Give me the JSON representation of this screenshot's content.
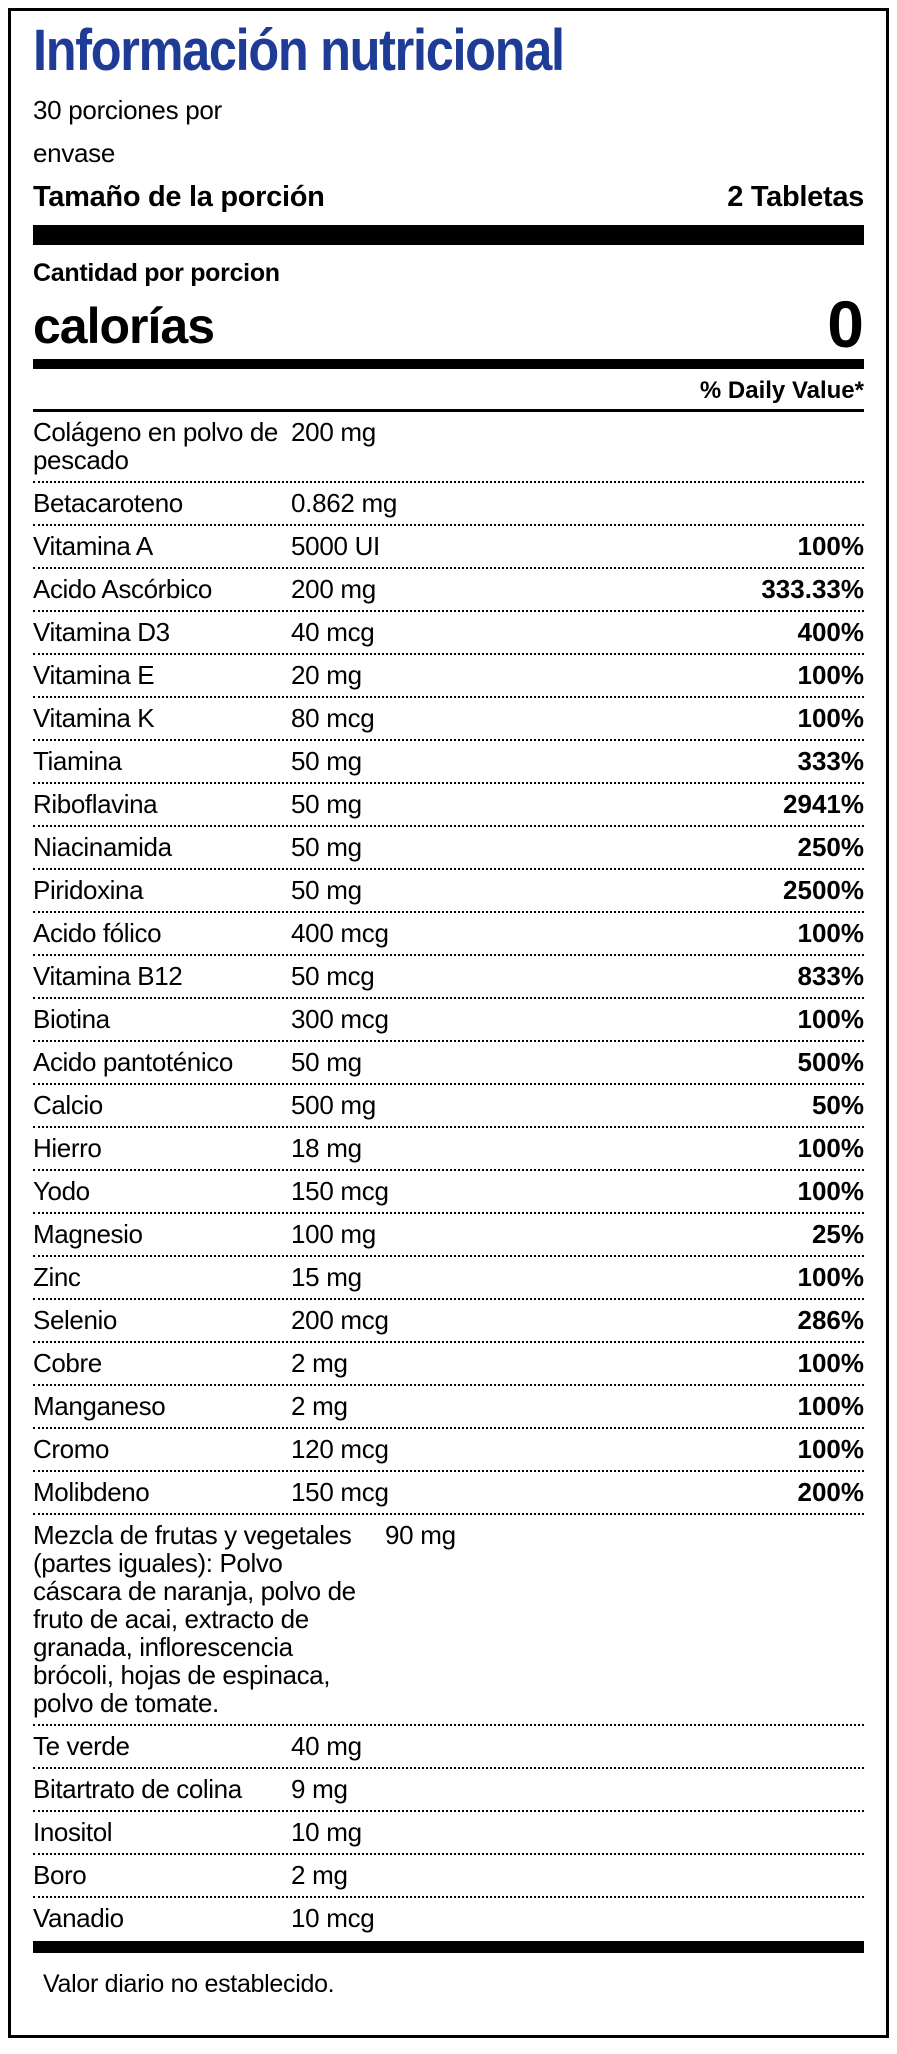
{
  "title": "Información nutricional",
  "servings_per_container": "30 porciones por\nenvase",
  "serving_size": {
    "label": "Tamaño de la porción",
    "value": "2 Tabletas"
  },
  "amount_per_serving": "Cantidad por porcion",
  "calories": {
    "label": "calorías",
    "value": "0"
  },
  "daily_value_header": "% Daily Value*",
  "rows": [
    {
      "label": "Colágeno en polvo de\npescado",
      "amount": "200 mg",
      "dv": ""
    },
    {
      "label": "Betacaroteno",
      "amount": "0.862 mg",
      "dv": ""
    },
    {
      "label": "Vitamina A",
      "amount": "5000 UI",
      "dv": "100%"
    },
    {
      "label": "Acido Ascórbico",
      "amount": "200 mg",
      "dv": "333.33%"
    },
    {
      "label": "Vitamina D3",
      "amount": "40 mcg",
      "dv": "400%"
    },
    {
      "label": "Vitamina E",
      "amount": "20 mg",
      "dv": "100%"
    },
    {
      "label": "Vitamina K",
      "amount": "80 mcg",
      "dv": "100%"
    },
    {
      "label": "Tiamina",
      "amount": "50 mg",
      "dv": "333%"
    },
    {
      "label": "Riboflavina",
      "amount": "50 mg",
      "dv": "2941%"
    },
    {
      "label": "Niacinamida",
      "amount": "50 mg",
      "dv": "250%"
    },
    {
      "label": "Piridoxina",
      "amount": "50 mg",
      "dv": "2500%"
    },
    {
      "label": "Acido fólico",
      "amount": "400 mcg",
      "dv": "100%"
    },
    {
      "label": "Vitamina B12",
      "amount": "50 mcg",
      "dv": "833%"
    },
    {
      "label": "Biotina",
      "amount": "300 mcg",
      "dv": "100%"
    },
    {
      "label": "Acido pantoténico",
      "amount": "50 mg",
      "dv": "500%"
    },
    {
      "label": "Calcio",
      "amount": "500 mg",
      "dv": "50%"
    },
    {
      "label": "Hierro",
      "amount": "18 mg",
      "dv": "100%"
    },
    {
      "label": "Yodo",
      "amount": "150 mcg",
      "dv": "100%"
    },
    {
      "label": "Magnesio",
      "amount": "100 mg",
      "dv": "25%"
    },
    {
      "label": "Zinc",
      "amount": "15 mg",
      "dv": "100%"
    },
    {
      "label": "Selenio",
      "amount": "200 mcg",
      "dv": "286%"
    },
    {
      "label": "Cobre",
      "amount": "2 mg",
      "dv": "100%"
    },
    {
      "label": "Manganeso",
      "amount": "2 mg",
      "dv": "100%"
    },
    {
      "label": "Cromo",
      "amount": "120 mcg",
      "dv": "100%"
    },
    {
      "label": "Molibdeno",
      "amount": "150 mcg",
      "dv": "200%"
    },
    {
      "label": "Mezcla de frutas y vegetales\n(partes iguales): Polvo\ncáscara de naranja, polvo de\nfruto de acai, extracto de\ngranada, inflorescencia\nbrócoli, hojas de espinaca,\npolvo de tomate.",
      "amount": "90 mg",
      "dv": ""
    },
    {
      "label": "Te verde",
      "amount": "40 mg",
      "dv": ""
    },
    {
      "label": "Bitartrato de colina",
      "amount": "9 mg",
      "dv": ""
    },
    {
      "label": "Inositol",
      "amount": "10 mg",
      "dv": ""
    },
    {
      "label": "Boro",
      "amount": "2 mg",
      "dv": ""
    },
    {
      "label": "Vanadio",
      "amount": "10 mcg",
      "dv": ""
    }
  ],
  "footnote": "Valor diario no establecido.",
  "colors": {
    "title_blue": "#1e3c96",
    "text_black": "#000000"
  }
}
